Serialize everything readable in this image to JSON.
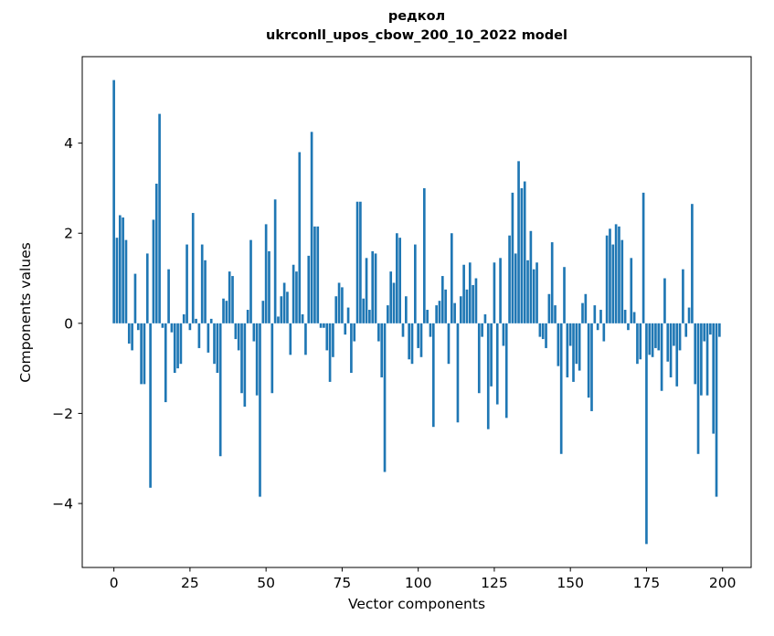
{
  "title": {
    "line1": "редкол",
    "line2": "ukrconll_upos_cbow_200_10_2022 model"
  },
  "chart_data": {
    "type": "bar",
    "title": "редкол\nukrconll_upos_cbow_200_10_2022 model",
    "xlabel": "Vector components",
    "ylabel": "Components values",
    "bar_color": "#1f77b4",
    "axis_color": "#000000",
    "xlim": [
      -10.4,
      209.4
    ],
    "ylim": [
      -5.42,
      5.92
    ],
    "xticks": [
      0,
      25,
      50,
      75,
      100,
      125,
      150,
      175,
      200
    ],
    "yticks": [
      -4,
      -2,
      0,
      2,
      4
    ],
    "grid": false,
    "legend": null,
    "x_start": 0,
    "values": [
      5.4,
      1.9,
      2.4,
      2.35,
      1.85,
      -0.45,
      -0.6,
      1.1,
      -0.15,
      -1.35,
      -1.35,
      1.55,
      -3.65,
      2.3,
      3.1,
      4.65,
      -0.1,
      -1.75,
      1.2,
      -0.2,
      -1.1,
      -1.0,
      -0.9,
      0.2,
      1.75,
      -0.15,
      2.45,
      0.1,
      -0.55,
      1.75,
      1.4,
      -0.65,
      0.1,
      -0.9,
      -1.1,
      -2.95,
      0.55,
      0.5,
      1.15,
      1.05,
      -0.35,
      -0.6,
      -1.55,
      -1.85,
      0.3,
      1.85,
      -0.4,
      -1.6,
      -3.85,
      0.5,
      2.2,
      1.6,
      -1.55,
      2.75,
      0.15,
      0.6,
      0.9,
      0.7,
      -0.7,
      1.3,
      1.15,
      3.8,
      0.2,
      -0.7,
      1.5,
      4.25,
      2.15,
      2.15,
      -0.1,
      -0.1,
      -0.6,
      -1.3,
      -0.75,
      0.6,
      0.9,
      0.8,
      -0.25,
      0.35,
      -1.1,
      -0.4,
      2.7,
      2.7,
      0.55,
      1.45,
      0.3,
      1.6,
      1.55,
      -0.4,
      -1.2,
      -3.3,
      0.4,
      1.15,
      0.9,
      2.0,
      1.9,
      -0.3,
      0.6,
      -0.8,
      -0.9,
      1.75,
      -0.55,
      -0.75,
      3.0,
      0.3,
      -0.3,
      -2.3,
      0.4,
      0.5,
      1.05,
      0.75,
      -0.9,
      2.0,
      0.45,
      -2.2,
      0.6,
      1.3,
      0.75,
      1.35,
      0.85,
      1.0,
      -1.55,
      -0.3,
      0.2,
      -2.35,
      -1.4,
      1.35,
      -1.8,
      1.45,
      -0.5,
      -2.1,
      1.95,
      2.9,
      1.55,
      3.6,
      3.0,
      3.15,
      1.4,
      2.05,
      1.2,
      1.35,
      -0.3,
      -0.35,
      -0.55,
      0.65,
      1.8,
      0.4,
      -0.95,
      -2.9,
      1.25,
      -1.2,
      -0.5,
      -1.3,
      -0.9,
      -1.05,
      0.45,
      0.65,
      -1.65,
      -1.95,
      0.4,
      -0.15,
      0.3,
      -0.4,
      1.95,
      2.1,
      1.75,
      2.2,
      2.15,
      1.85,
      0.3,
      -0.15,
      1.45,
      0.25,
      -0.9,
      -0.8,
      2.9,
      -4.9,
      -0.7,
      -0.75,
      -0.55,
      -0.6,
      -1.5,
      1.0,
      -0.85,
      -1.2,
      -0.5,
      -1.4,
      -0.6,
      1.2,
      -0.3,
      0.35,
      2.65,
      -1.35,
      -2.9,
      -1.6,
      -0.4,
      -1.6,
      -0.25,
      -2.45,
      -3.85,
      -0.3
    ]
  }
}
